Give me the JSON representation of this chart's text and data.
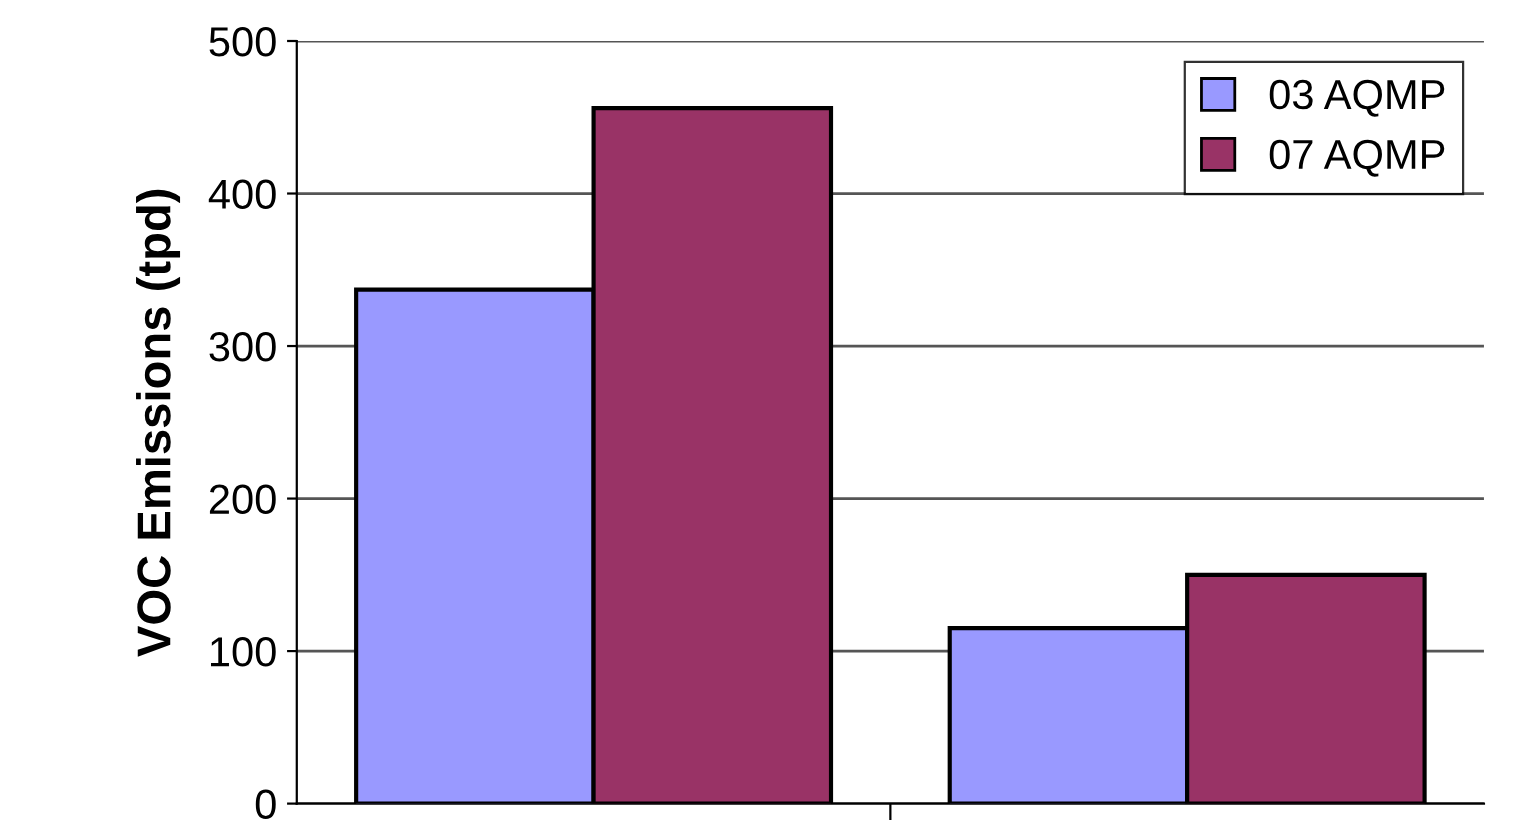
{
  "chart_data": {
    "type": "bar",
    "ylabel": "VOC Emissions (tpd)",
    "categories": [
      null,
      null
    ],
    "series": [
      {
        "name": "03 AQMP",
        "color": "#9999ff",
        "values": [
          337,
          115
        ]
      },
      {
        "name": "07 AQMP",
        "color": "#993366",
        "values": [
          456,
          150
        ]
      }
    ],
    "ylim": [
      0,
      500
    ],
    "yticks": [
      0,
      100,
      200,
      300,
      400,
      500
    ],
    "grid": "y",
    "legend": "top right"
  }
}
